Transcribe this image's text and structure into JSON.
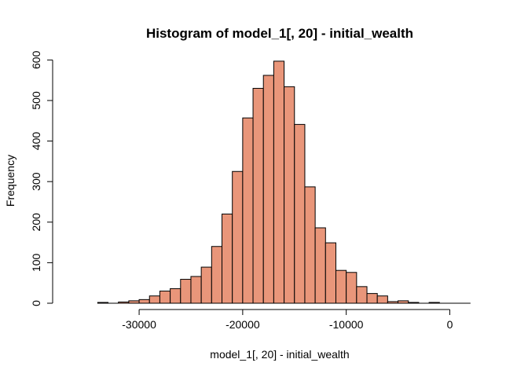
{
  "chart_data": {
    "type": "bar",
    "title": "Histogram of model_1[, 20] - initial_wealth",
    "xlabel": "model_1[, 20] - initial_wealth",
    "ylabel": "Frequency",
    "bar_color": "#e9967a",
    "bin_width": 1000,
    "bin_starts": [
      -34000,
      -33000,
      -32000,
      -31000,
      -30000,
      -29000,
      -28000,
      -27000,
      -26000,
      -25000,
      -24000,
      -23000,
      -22000,
      -21000,
      -20000,
      -19000,
      -18000,
      -17000,
      -16000,
      -15000,
      -14000,
      -13000,
      -12000,
      -11000,
      -10000,
      -9000,
      -8000,
      -7000,
      -6000,
      -5000,
      -4000,
      -3000,
      -2000,
      -1000,
      0,
      1000
    ],
    "values": [
      2,
      0,
      3,
      6,
      9,
      18,
      30,
      36,
      59,
      66,
      89,
      140,
      220,
      325,
      457,
      530,
      562,
      597,
      534,
      441,
      287,
      186,
      149,
      81,
      76,
      41,
      24,
      18,
      4,
      6,
      2,
      0,
      2,
      0,
      0,
      0
    ],
    "xlim": [
      -36000,
      3000
    ],
    "ylim": [
      0,
      620
    ],
    "x_ticks": [
      -30000,
      -20000,
      -10000,
      0
    ],
    "x_tick_labels": [
      "-30000",
      "-20000",
      "-10000",
      "0"
    ],
    "y_ticks": [
      0,
      100,
      200,
      300,
      400,
      500,
      600
    ],
    "y_tick_labels": [
      "0",
      "100",
      "200",
      "300",
      "400",
      "500",
      "600"
    ],
    "grid": false,
    "legend": "none"
  }
}
